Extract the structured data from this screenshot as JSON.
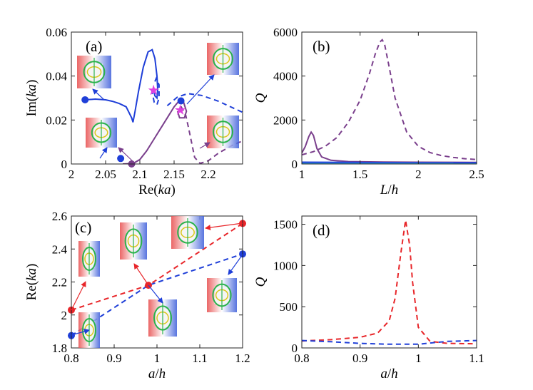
{
  "chart_data": [
    {
      "type": "line",
      "panel_label": "(a)",
      "xlabel": "Re(ka)",
      "ylabel": "Im(ka)",
      "xlim": [
        2.0,
        2.25
      ],
      "ylim": [
        0,
        0.06
      ],
      "xticks": [
        "2",
        "2.05",
        "2.1",
        "2.15",
        "2.2"
      ],
      "xtick_values": [
        2.0,
        2.05,
        2.1,
        2.15,
        2.2
      ],
      "yticks": [
        "0",
        "0.02",
        "0.04",
        "0.06"
      ],
      "ytick_values": [
        0,
        0.02,
        0.04,
        0.06
      ],
      "colors": {
        "blue": "#1f3fd8",
        "purple": "#7a3f8c",
        "magenta": "#e040e0"
      },
      "series": [
        {
          "style": "solid",
          "color": "blue",
          "points": [
            [
              2.02,
              0.0292
            ],
            [
              2.035,
              0.0295
            ],
            [
              2.05,
              0.0292
            ],
            [
              2.06,
              0.0285
            ],
            [
              2.07,
              0.0275
            ],
            [
              2.08,
              0.026
            ],
            [
              2.088,
              0.021
            ],
            [
              2.09,
              0.019
            ],
            [
              2.093,
              0.024
            ],
            [
              2.098,
              0.033
            ],
            [
              2.105,
              0.044
            ],
            [
              2.112,
              0.051
            ],
            [
              2.118,
              0.052
            ],
            [
              2.122,
              0.048
            ],
            [
              2.125,
              0.04
            ],
            [
              2.126,
              0.034
            ],
            [
              2.125,
              0.03
            ],
            [
              2.122,
              0.031
            ],
            [
              2.12,
              0.034
            ]
          ]
        },
        {
          "style": "dashed",
          "color": "blue",
          "points": [
            [
              2.117,
              0.034
            ],
            [
              2.121,
              0.028
            ],
            [
              2.125,
              0.027
            ],
            [
              2.128,
              0.03
            ],
            [
              2.128,
              0.036
            ],
            [
              2.124,
              0.039
            ],
            [
              2.12,
              0.036
            ]
          ]
        },
        {
          "style": "dashed",
          "color": "blue",
          "points": [
            [
              2.14,
              0.0265
            ],
            [
              2.155,
              0.0305
            ],
            [
              2.17,
              0.032
            ],
            [
              2.19,
              0.0312
            ],
            [
              2.215,
              0.0285
            ],
            [
              2.25,
              0.0235
            ]
          ]
        },
        {
          "style": "solid",
          "color": "purple",
          "points": [
            [
              2.075,
              0.0
            ],
            [
              2.09,
              0.0002
            ],
            [
              2.1,
              0.002
            ],
            [
              2.11,
              0.006
            ],
            [
              2.12,
              0.011
            ],
            [
              2.13,
              0.016
            ],
            [
              2.14,
              0.021
            ],
            [
              2.15,
              0.026
            ],
            [
              2.158,
              0.029
            ],
            [
              2.164,
              0.028
            ],
            [
              2.168,
              0.024
            ],
            [
              2.165,
              0.021
            ],
            [
              2.158,
              0.021
            ],
            [
              2.155,
              0.024
            ]
          ]
        },
        {
          "style": "dashed",
          "color": "purple",
          "points": [
            [
              2.16,
              0.0262
            ],
            [
              2.167,
              0.0222
            ],
            [
              2.171,
              0.0165
            ],
            [
              2.176,
              0.009
            ],
            [
              2.18,
              0.003
            ],
            [
              2.188,
              0.0003
            ],
            [
              2.2,
              0.0015
            ],
            [
              2.215,
              0.005
            ],
            [
              2.235,
              0.0085
            ],
            [
              2.25,
              0.0105
            ]
          ]
        }
      ],
      "markers": [
        {
          "x": 2.02,
          "y": 0.0292,
          "color": "blue"
        },
        {
          "x": 2.072,
          "y": 0.0025,
          "color": "blue"
        },
        {
          "x": 2.088,
          "y": 0.0,
          "color": "purple"
        },
        {
          "x": 2.16,
          "y": 0.0287,
          "color": "blue"
        },
        {
          "x": 2.12,
          "y": 0.0335,
          "color": "magenta",
          "kind": "star"
        },
        {
          "x": 2.159,
          "y": 0.0245,
          "color": "magenta",
          "kind": "star"
        }
      ]
    },
    {
      "type": "line",
      "panel_label": "(b)",
      "xlabel": "L/h",
      "ylabel": "Q",
      "xlim": [
        1.0,
        2.5
      ],
      "ylim": [
        0,
        6000
      ],
      "xticks": [
        "1",
        "1.5",
        "2",
        "2.5"
      ],
      "xtick_values": [
        1.0,
        1.5,
        2.0,
        2.5
      ],
      "yticks": [
        "0",
        "2000",
        "4000",
        "6000"
      ],
      "ytick_values": [
        0,
        2000,
        4000,
        6000
      ],
      "series": [
        {
          "style": "dashed",
          "color": "#7a3f8c",
          "points": [
            [
              1.0,
              420
            ],
            [
              1.1,
              560
            ],
            [
              1.2,
              800
            ],
            [
              1.3,
              1200
            ],
            [
              1.4,
              1900
            ],
            [
              1.5,
              2900
            ],
            [
              1.58,
              4100
            ],
            [
              1.63,
              5000
            ],
            [
              1.67,
              5550
            ],
            [
              1.69,
              5650
            ],
            [
              1.71,
              5450
            ],
            [
              1.75,
              4400
            ],
            [
              1.8,
              3000
            ],
            [
              1.9,
              1450
            ],
            [
              2.0,
              800
            ],
            [
              2.1,
              520
            ],
            [
              2.2,
              380
            ],
            [
              2.3,
              300
            ],
            [
              2.4,
              240
            ],
            [
              2.5,
              200
            ]
          ]
        },
        {
          "style": "solid",
          "color": "#7a3f8c",
          "points": [
            [
              1.0,
              500
            ],
            [
              1.03,
              800
            ],
            [
              1.06,
              1250
            ],
            [
              1.08,
              1450
            ],
            [
              1.1,
              1300
            ],
            [
              1.13,
              700
            ],
            [
              1.17,
              320
            ],
            [
              1.25,
              170
            ],
            [
              1.4,
              110
            ],
            [
              1.7,
              90
            ],
            [
              2.0,
              80
            ],
            [
              2.5,
              75
            ]
          ]
        },
        {
          "style": "solid",
          "color": "#1f3fd8",
          "points": [
            [
              1.0,
              80
            ],
            [
              1.5,
              70
            ],
            [
              2.0,
              60
            ],
            [
              2.5,
              55
            ]
          ]
        },
        {
          "style": "dashed",
          "color": "#1f3fd8",
          "points": [
            [
              1.0,
              30
            ],
            [
              1.5,
              28
            ],
            [
              2.0,
              25
            ],
            [
              2.5,
              22
            ]
          ]
        },
        {
          "style": "solid",
          "color": "#33a3dc",
          "points": [
            [
              1.0,
              15
            ],
            [
              2.5,
              12
            ]
          ]
        }
      ]
    },
    {
      "type": "line",
      "panel_label": "(c)",
      "xlabel": "a/h",
      "ylabel": "Re(ka)",
      "xlim": [
        0.8,
        1.2
      ],
      "ylim": [
        1.8,
        2.6
      ],
      "xticks": [
        "0.8",
        "0.9",
        "1",
        "1.1",
        "1.2"
      ],
      "xtick_values": [
        0.8,
        0.9,
        1.0,
        1.1,
        1.2
      ],
      "yticks": [
        "1.8",
        "2",
        "2.2",
        "2.4",
        "2.6"
      ],
      "ytick_values": [
        1.8,
        2.0,
        2.2,
        2.4,
        2.6
      ],
      "series": [
        {
          "style": "dashed",
          "color": "#e8262a",
          "points": [
            [
              0.8,
              2.03
            ],
            [
              0.98,
              2.18
            ],
            [
              1.2,
              2.555
            ]
          ]
        },
        {
          "style": "dashed",
          "color": "#1f3fd8",
          "points": [
            [
              0.8,
              1.875
            ],
            [
              0.98,
              2.18
            ],
            [
              1.2,
              2.37
            ]
          ]
        }
      ],
      "markers": [
        {
          "x": 0.8,
          "y": 2.03,
          "color": "#e8262a"
        },
        {
          "x": 1.2,
          "y": 2.555,
          "color": "#e8262a"
        },
        {
          "x": 0.8,
          "y": 1.875,
          "color": "#1f3fd8"
        },
        {
          "x": 1.2,
          "y": 2.37,
          "color": "#1f3fd8"
        },
        {
          "x": 0.98,
          "y": 2.18,
          "color": "#e8262a"
        }
      ]
    },
    {
      "type": "line",
      "panel_label": "(d)",
      "xlabel": "a/h",
      "ylabel": "Q",
      "xlim": [
        0.8,
        1.1
      ],
      "ylim": [
        0,
        1600
      ],
      "xticks": [
        "0.8",
        "0.9",
        "1",
        "1.1"
      ],
      "xtick_values": [
        0.8,
        0.9,
        1.0,
        1.1
      ],
      "yticks": [
        "0",
        "500",
        "1000",
        "1500"
      ],
      "ytick_values": [
        0,
        500,
        1000,
        1500
      ],
      "series": [
        {
          "style": "dashed",
          "color": "#e8262a",
          "points": [
            [
              0.8,
              85
            ],
            [
              0.85,
              100
            ],
            [
              0.9,
              130
            ],
            [
              0.93,
              180
            ],
            [
              0.95,
              330
            ],
            [
              0.96,
              600
            ],
            [
              0.97,
              1150
            ],
            [
              0.978,
              1550
            ],
            [
              0.985,
              1250
            ],
            [
              0.99,
              800
            ],
            [
              1.0,
              250
            ],
            [
              1.02,
              80
            ],
            [
              1.05,
              55
            ],
            [
              1.1,
              50
            ]
          ]
        },
        {
          "style": "dashed",
          "color": "#1f3fd8",
          "points": [
            [
              0.8,
              90
            ],
            [
              0.85,
              75
            ],
            [
              0.9,
              55
            ],
            [
              0.95,
              45
            ],
            [
              1.0,
              45
            ],
            [
              1.02,
              60
            ],
            [
              1.05,
              80
            ],
            [
              1.1,
              90
            ]
          ]
        }
      ]
    }
  ]
}
